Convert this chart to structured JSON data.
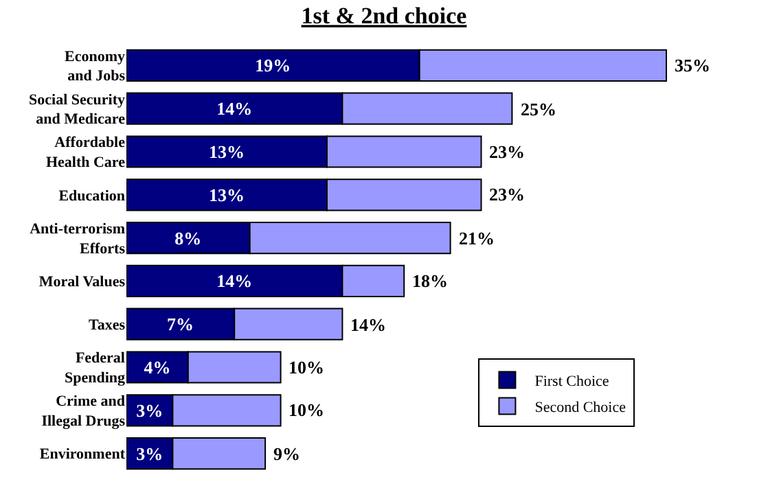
{
  "chart_data": {
    "type": "bar",
    "orientation": "horizontal",
    "stacked": true,
    "title": "1st & 2nd choice",
    "categories": [
      "Economy\nand Jobs",
      "Social Security\nand Medicare",
      "Affordable\nHealth Care",
      "Education",
      "Anti-terrorism\nEfforts",
      "Moral Values",
      "Taxes",
      "Federal\nSpending",
      "Crime and\nIllegal Drugs",
      "Environment"
    ],
    "series": [
      {
        "name": "First Choice",
        "color": "#000080",
        "values": [
          19,
          14,
          13,
          13,
          8,
          14,
          7,
          4,
          3,
          3
        ],
        "value_labels": [
          "19%",
          "14%",
          "13%",
          "13%",
          "8%",
          "14%",
          "7%",
          "4%",
          "3%",
          "3%"
        ]
      },
      {
        "name": "Second Choice",
        "color": "#9999ff",
        "values": [
          16,
          11,
          10,
          10,
          13,
          4,
          7,
          6,
          7,
          6
        ]
      }
    ],
    "totals": [
      "35%",
      "25%",
      "23%",
      "23%",
      "21%",
      "18%",
      "14%",
      "10%",
      "10%",
      "9%"
    ],
    "tick_labels": "y",
    "legend": "bottom right"
  }
}
